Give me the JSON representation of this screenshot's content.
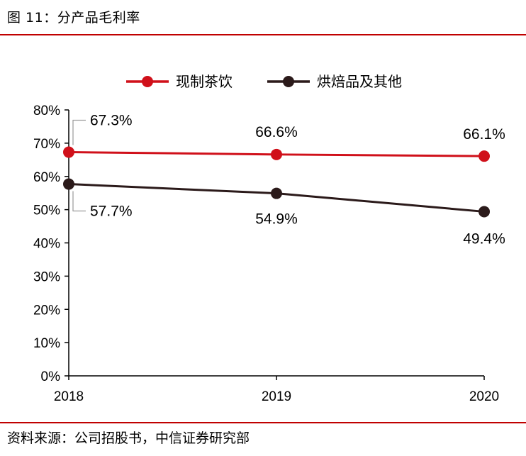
{
  "page": {
    "title": "图 11：分产品毛利率",
    "source": "资料来源：公司招股书，中信证券研究部"
  },
  "chart_data": {
    "type": "line",
    "title": "",
    "xlabel": "",
    "ylabel": "",
    "x": [
      "2018",
      "2019",
      "2020"
    ],
    "ylim": [
      0,
      80
    ],
    "yticks": [
      "0%",
      "10%",
      "20%",
      "30%",
      "40%",
      "50%",
      "60%",
      "70%",
      "80%"
    ],
    "legend_position": "top",
    "grid": false,
    "series": [
      {
        "name": "现制茶饮",
        "color": "#d0101a",
        "values": [
          67.3,
          66.6,
          66.1
        ],
        "labels": [
          "67.3%",
          "66.6%",
          "66.1%"
        ]
      },
      {
        "name": "烘焙品及其他",
        "color": "#2b1a1a",
        "values": [
          57.7,
          54.9,
          49.4
        ],
        "labels": [
          "57.7%",
          "54.9%",
          "49.4%"
        ]
      }
    ]
  }
}
